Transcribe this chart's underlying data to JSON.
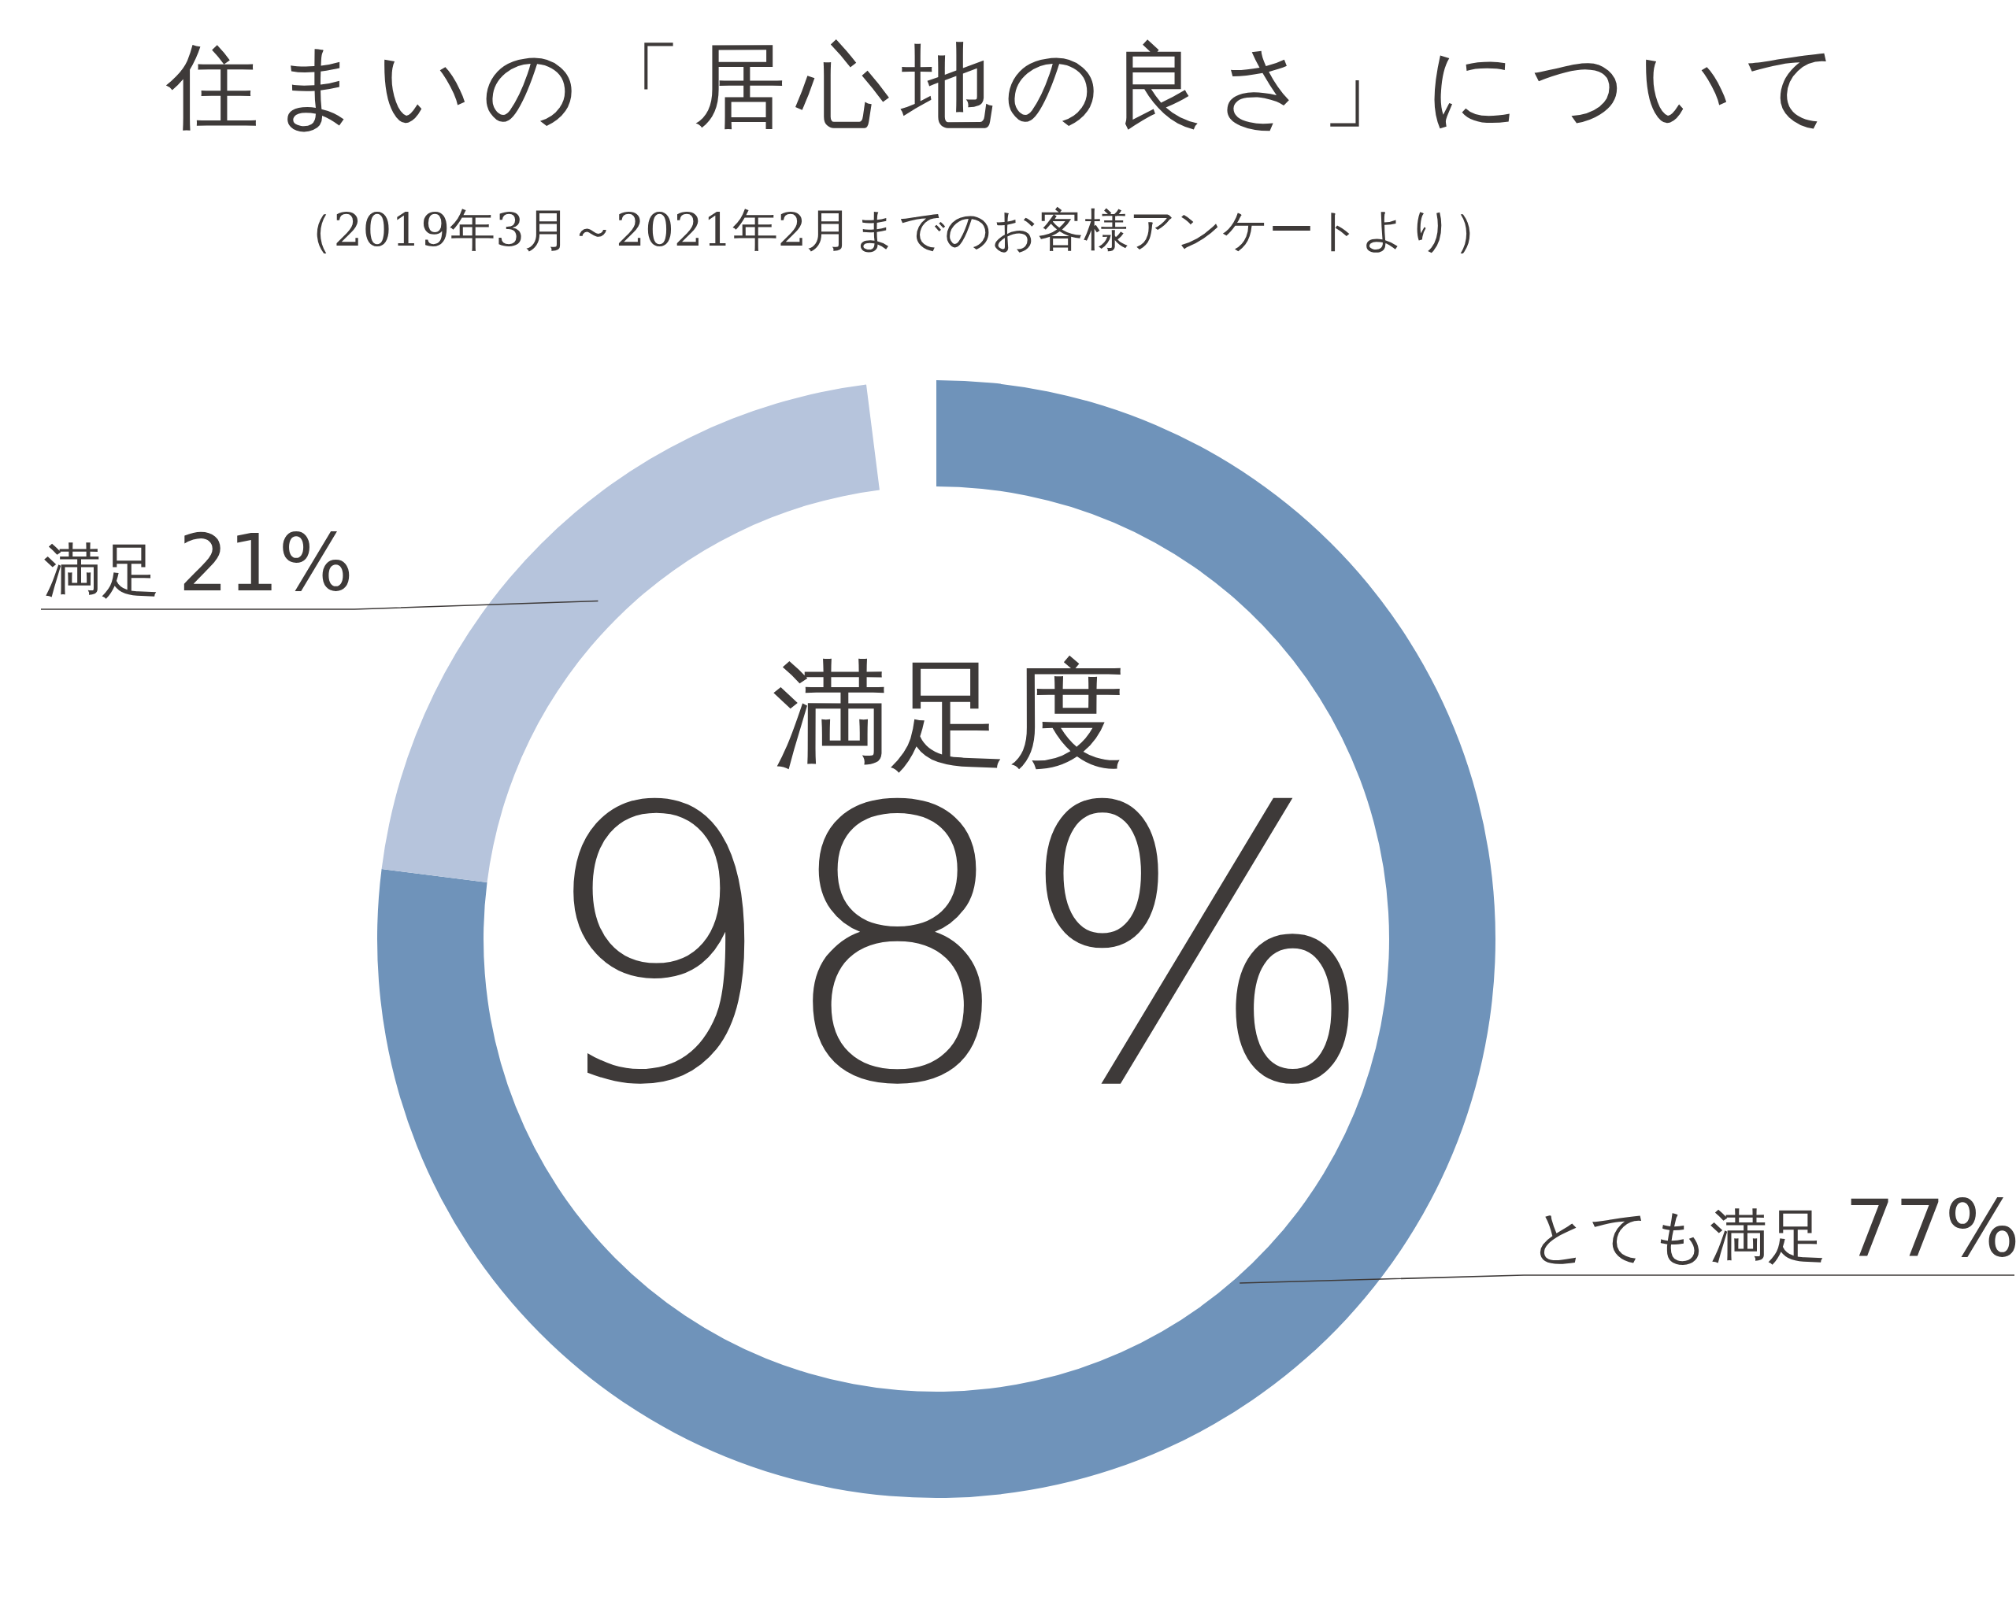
{
  "chart_data": {
    "type": "donut",
    "title": "住まいの「居心地の良さ」について",
    "subtitle": "（2019年3月～2021年2月までのお客様アンケートより）",
    "categories": [
      "とても満足",
      "満足"
    ],
    "values": [
      77,
      21
    ],
    "value_labels": [
      "77%",
      "21%"
    ],
    "colors": [
      "#6f93ba",
      "#b6c4dc"
    ],
    "annotations": [
      "満足度",
      "98%"
    ]
  }
}
